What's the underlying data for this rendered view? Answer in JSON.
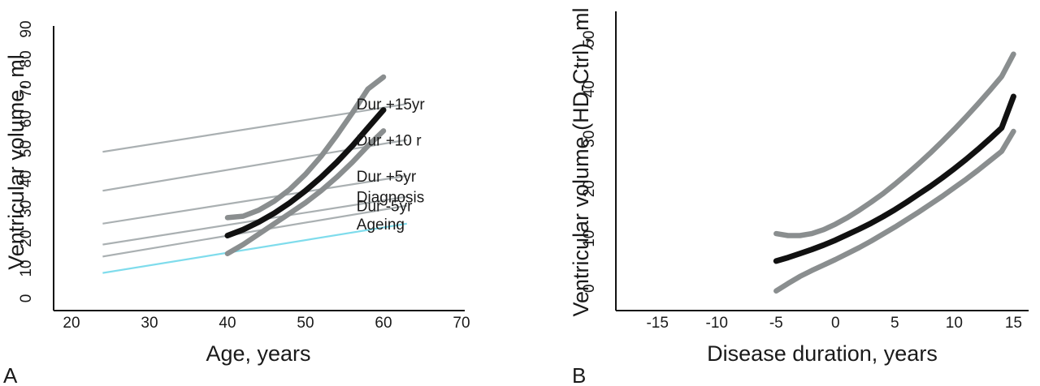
{
  "chart_data": [
    {
      "type": "line",
      "panel_label": "A",
      "xlabel": "Age, years",
      "ylabel": "Ventricular volume, ml",
      "xlim": [
        20,
        70
      ],
      "ylim": [
        0,
        90
      ],
      "xticks": [
        20,
        30,
        40,
        50,
        60,
        70
      ],
      "yticks": [
        0,
        10,
        20,
        30,
        40,
        50,
        60,
        70,
        80,
        90
      ],
      "grid": false,
      "trajectories": [
        {
          "name": "Ageing",
          "color": "#7fdcec",
          "points": [
            [
              24,
              8.5
            ],
            [
              63,
              25
            ]
          ]
        },
        {
          "name": "Dur -5yr",
          "color": "#aab0b2",
          "points": [
            [
              24,
              14
            ],
            [
              63,
              31
            ]
          ]
        },
        {
          "name": "Diagnosis",
          "color": "#aab0b2",
          "points": [
            [
              24,
              18
            ],
            [
              63,
              34
            ]
          ]
        },
        {
          "name": "Dur +5yr",
          "color": "#aab0b2",
          "points": [
            [
              24,
              25
            ],
            [
              63,
              41
            ]
          ]
        },
        {
          "name": "Dur +10 r",
          "color": "#aab0b2",
          "points": [
            [
              24,
              36
            ],
            [
              63,
              53
            ]
          ]
        },
        {
          "name": "Dur +15yr",
          "color": "#aab0b2",
          "points": [
            [
              24,
              49
            ],
            [
              63,
              65
            ]
          ]
        }
      ],
      "series": [
        {
          "role": "upper",
          "color": "#8a8e8f",
          "x": [
            40,
            42,
            44,
            46,
            48,
            50,
            52,
            54,
            56,
            58,
            60
          ],
          "y": [
            27,
            27.5,
            29.5,
            32.5,
            36.5,
            41.5,
            47.5,
            54.5,
            62,
            70,
            74
          ]
        },
        {
          "role": "mean",
          "color": "#111111",
          "x": [
            40,
            42,
            44,
            46,
            48,
            50,
            52,
            54,
            56,
            58,
            60
          ],
          "y": [
            21,
            23,
            25.5,
            28.5,
            32,
            36,
            40.5,
            45.5,
            51,
            57,
            63
          ]
        },
        {
          "role": "lower",
          "color": "#8a8e8f",
          "x": [
            40,
            42,
            44,
            46,
            48,
            50,
            52,
            54,
            56,
            58,
            60
          ],
          "y": [
            15,
            18,
            21.5,
            25,
            28.5,
            32,
            36,
            40.5,
            45.5,
            51,
            56
          ]
        }
      ]
    },
    {
      "type": "line",
      "panel_label": "B",
      "xlabel": "Disease duration, years",
      "ylabel": "Ventricular volume (HD-Ctrl), ml",
      "xlim": [
        -17,
        16
      ],
      "ylim": [
        -2,
        52
      ],
      "xticks": [
        -15,
        -10,
        -5,
        0,
        5,
        10,
        15
      ],
      "yticks": [
        0,
        10,
        20,
        30,
        40,
        50
      ],
      "grid": false,
      "series": [
        {
          "role": "upper",
          "color": "#8a8e8f",
          "x": [
            -5,
            -4,
            -3,
            -2,
            -1,
            0,
            1,
            2,
            3,
            4,
            5,
            6,
            7,
            8,
            9,
            10,
            11,
            12,
            13,
            14,
            15
          ],
          "y": [
            11,
            10.6,
            10.6,
            11,
            11.8,
            12.9,
            14.2,
            15.7,
            17.3,
            19,
            20.9,
            22.9,
            25,
            27.2,
            29.5,
            31.9,
            34.4,
            37,
            39.7,
            42.5,
            47
          ]
        },
        {
          "role": "mean",
          "color": "#111111",
          "x": [
            -5,
            -4,
            -3,
            -2,
            -1,
            0,
            1,
            2,
            3,
            4,
            5,
            6,
            7,
            8,
            9,
            10,
            11,
            12,
            13,
            14,
            15
          ],
          "y": [
            5.5,
            6.2,
            7,
            7.8,
            8.7,
            9.7,
            10.8,
            11.9,
            13.1,
            14.4,
            15.8,
            17.3,
            18.9,
            20.5,
            22.2,
            24,
            25.9,
            27.9,
            30,
            32.2,
            38.5
          ]
        },
        {
          "role": "lower",
          "color": "#8a8e8f",
          "x": [
            -5,
            -4,
            -3,
            -2,
            -1,
            0,
            1,
            2,
            3,
            4,
            5,
            6,
            7,
            8,
            9,
            10,
            11,
            12,
            13,
            14,
            15
          ],
          "y": [
            -0.5,
            1,
            2.4,
            3.6,
            4.7,
            5.8,
            7,
            8.2,
            9.5,
            10.9,
            12.3,
            13.8,
            15.3,
            16.9,
            18.5,
            20.2,
            21.9,
            23.7,
            25.6,
            27.5,
            31.5
          ]
        }
      ]
    }
  ]
}
